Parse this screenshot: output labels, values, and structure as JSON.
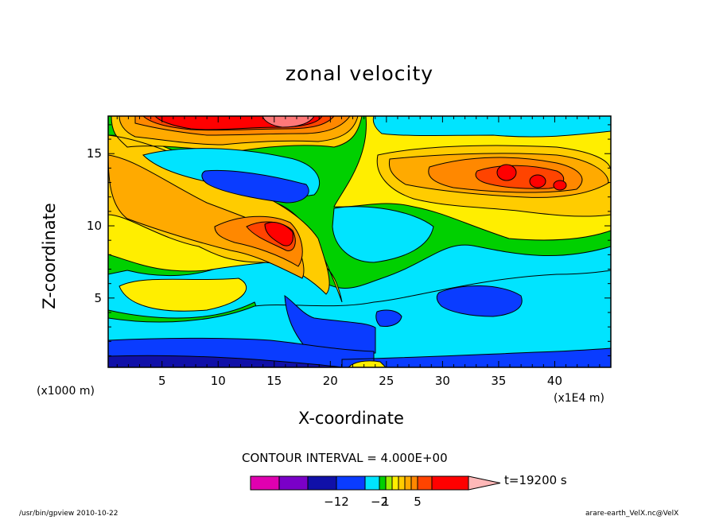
{
  "chart_data": {
    "type": "heatmap",
    "title": "zonal velocity",
    "xlabel": "X-coordinate",
    "ylabel": "Z-coordinate",
    "x_unit_left": "(x1000 m)",
    "x_unit_right": "(x1E4 m)",
    "x_ticks": [
      5,
      10,
      15,
      20,
      25,
      30,
      35,
      40
    ],
    "y_ticks": [
      5,
      10,
      15
    ],
    "xlim": [
      0.2,
      45
    ],
    "ylim": [
      0.2,
      17.6
    ],
    "contour_interval_text": "CONTOUR INTERVAL = 4.000E+00",
    "time_text": "t=19200 s",
    "colorbar": {
      "colors": [
        "#e000b0",
        "#7a00c8",
        "#1010a8",
        "#0a3cff",
        "#00e4ff",
        "#00d000",
        "#9aee00",
        "#ffee00",
        "#ffcc00",
        "#ffaa00",
        "#ff8800",
        "#ff4400",
        "#ff0000",
        "#ff7878",
        "#ffb8b8"
      ],
      "tick_labels": [
        "−12",
        "−2",
        "1",
        "5"
      ],
      "tick_values": [
        -12,
        -2,
        1,
        5
      ]
    },
    "regions": [
      {
        "level": -10,
        "desc": "deep blue band near bottom",
        "x": [
          0.2,
          45
        ],
        "z": [
          0.2,
          2.2
        ]
      },
      {
        "level": -6,
        "desc": "blue region under jet",
        "x": [
          16,
          24
        ],
        "z": [
          1.5,
          5
        ]
      },
      {
        "level": -6,
        "desc": "blue patch right",
        "x": [
          29,
          37
        ],
        "z": [
          4,
          6
        ]
      },
      {
        "level": -6,
        "desc": "blue patch upper",
        "x": [
          9,
          18
        ],
        "z": [
          12,
          14
        ]
      },
      {
        "level": -2,
        "desc": "cyan region mid",
        "x": [
          0.2,
          45
        ],
        "z": [
          2,
          9
        ]
      },
      {
        "level": 6,
        "desc": "orange jet core",
        "x": [
          12,
          17
        ],
        "z": [
          8,
          11
        ]
      },
      {
        "level": 10,
        "desc": "red core",
        "x": [
          14,
          16
        ],
        "z": [
          9,
          10
        ]
      },
      {
        "level": 8,
        "desc": "top red band",
        "x": [
          3,
          23
        ],
        "z": [
          15.5,
          17.6
        ]
      },
      {
        "level": 7,
        "desc": "orange band right",
        "x": [
          25,
          44
        ],
        "z": [
          12,
          15
        ]
      }
    ]
  },
  "footer": {
    "left": "/usr/bin/gpview   2010-10-22",
    "right": "arare-earth_VelX.nc@VelX"
  }
}
